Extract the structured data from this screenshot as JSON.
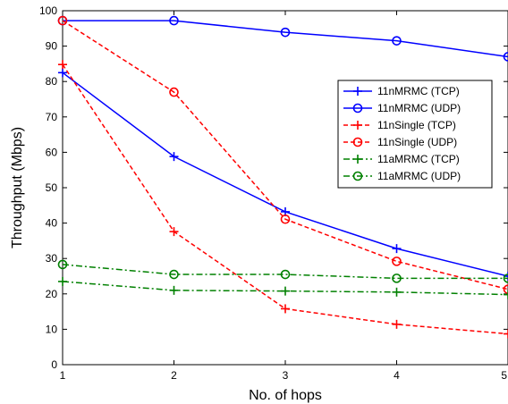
{
  "chart_data": {
    "type": "line",
    "title": "",
    "xlabel": "No. of hops",
    "ylabel": "Throughput (Mbps)",
    "xlim": [
      1,
      5
    ],
    "ylim": [
      0,
      100
    ],
    "xticks": [
      "1",
      "2",
      "3",
      "4",
      "5"
    ],
    "yticks": [
      "0",
      "10",
      "20",
      "30",
      "40",
      "50",
      "60",
      "70",
      "80",
      "90",
      "100"
    ],
    "grid": false,
    "legend_position": "top-right",
    "x": [
      1,
      2,
      3,
      4,
      5
    ],
    "series": [
      {
        "name": "11nMRMC (TCP)",
        "values": [
          82.5,
          58.8,
          43.2,
          32.8,
          25.0
        ],
        "color": "#0000ff",
        "dash": "solid",
        "marker": "plus"
      },
      {
        "name": "11nMRMC (UDP)",
        "values": [
          97.2,
          97.2,
          93.9,
          91.5,
          87.0
        ],
        "color": "#0000ff",
        "dash": "solid",
        "marker": "circle"
      },
      {
        "name": "11nSingle (TCP)",
        "values": [
          84.8,
          37.6,
          15.8,
          11.4,
          8.7
        ],
        "color": "#ff0000",
        "dash": "dashed",
        "marker": "plus"
      },
      {
        "name": "11nSingle (UDP)",
        "values": [
          97.2,
          77.0,
          41.1,
          29.2,
          21.3
        ],
        "color": "#ff0000",
        "dash": "dashed",
        "marker": "circle"
      },
      {
        "name": "11aMRMC (TCP)",
        "values": [
          23.5,
          21.0,
          20.8,
          20.5,
          19.8
        ],
        "color": "#008000",
        "dash": "dashdot",
        "marker": "plus"
      },
      {
        "name": "11aMRMC (UDP)",
        "values": [
          28.3,
          25.5,
          25.5,
          24.4,
          24.4
        ],
        "color": "#008000",
        "dash": "dashdot",
        "marker": "circle"
      }
    ]
  }
}
